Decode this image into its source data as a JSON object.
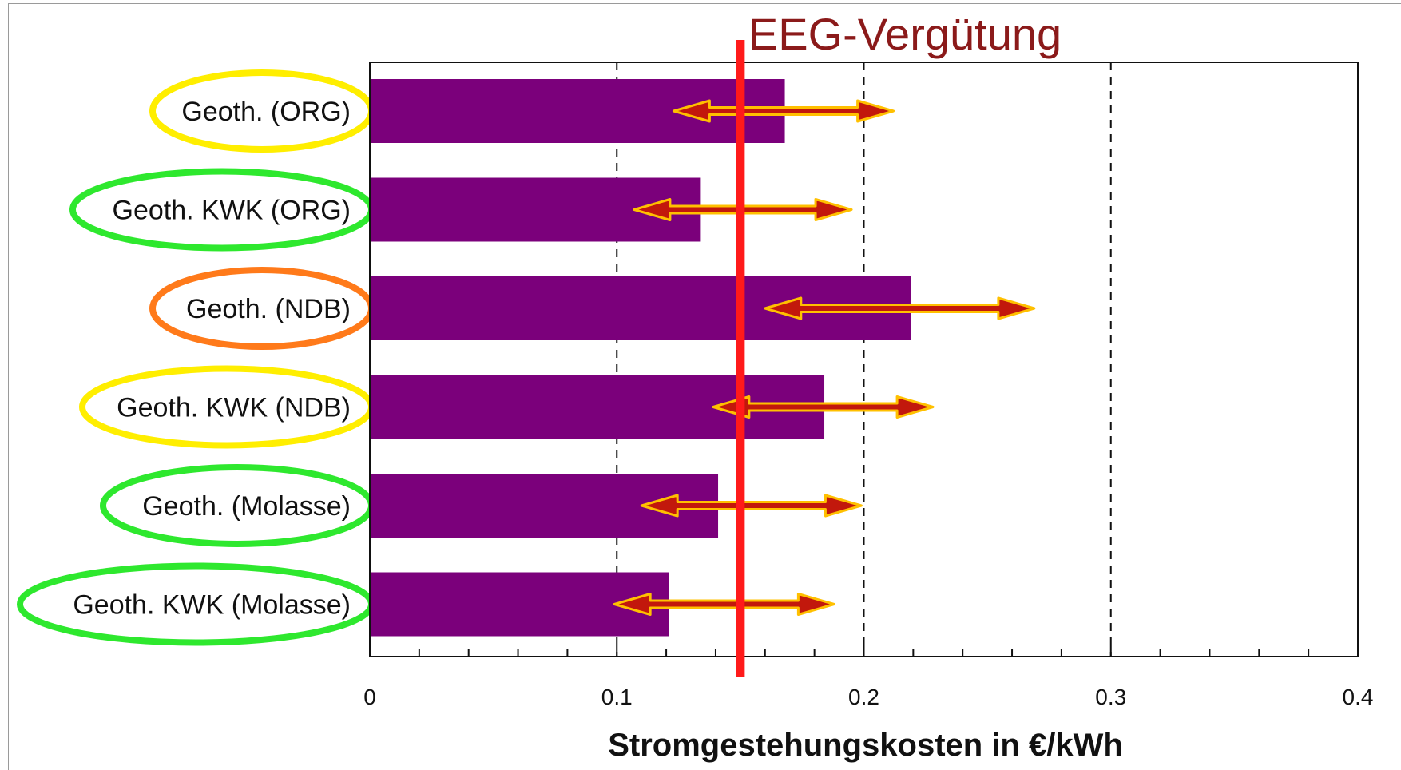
{
  "chart_data": {
    "type": "bar",
    "orientation": "horizontal",
    "categories": [
      "Geoth. (ORG)",
      "Geoth. KWK (ORG)",
      "Geoth. (NDB)",
      "Geoth. KWK (NDB)",
      "Geoth. (Molasse)",
      "Geoth. KWK (Molasse)"
    ],
    "values": [
      0.168,
      0.134,
      0.219,
      0.184,
      0.141,
      0.121
    ],
    "ranges": [
      [
        0.123,
        0.212
      ],
      [
        0.107,
        0.195
      ],
      [
        0.16,
        0.269
      ],
      [
        0.139,
        0.228
      ],
      [
        0.11,
        0.199
      ],
      [
        0.099,
        0.188
      ]
    ],
    "category_outline_colors": [
      "#ffee00",
      "#2ee82e",
      "#ff7a1a",
      "#ffee00",
      "#2ee82e",
      "#2ee82e"
    ],
    "bar_color": "#7b007b",
    "range_arrow_color": "#c2180c",
    "range_arrow_glow": "#ffc000",
    "reference_line": {
      "value": 0.15,
      "label": "EEG-Vergütung",
      "color": "#ff1a1a",
      "label_color": "#8b1a1a"
    },
    "xlim": [
      0,
      0.4
    ],
    "xticks": [
      0,
      0.1,
      0.2,
      0.3,
      0.4
    ],
    "xtick_labels": [
      "0",
      "0.1",
      "0.2",
      "0.3",
      "0.4"
    ],
    "grid": "vertical dashed at 0.1, 0.2, 0.3",
    "xlabel": "Stromgestehungskosten in €/kWh",
    "ylabel": "",
    "title": ""
  }
}
